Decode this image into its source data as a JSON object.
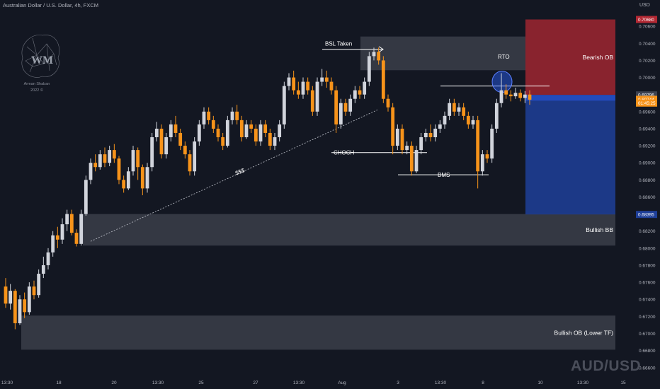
{
  "header": {
    "title": "Australian Dollar / U.S. Dollar, 4h, FXCM",
    "currency": "USD"
  },
  "watermark": {
    "symbol": "AUD/USD",
    "author": "Arman Shaban",
    "year": "2022 ©"
  },
  "chart_data": {
    "type": "candlestick",
    "ylim": [
      0.6654,
      0.7085
    ],
    "y_ticks": [
      "0.70600",
      "0.70400",
      "0.70200",
      "0.70000",
      "0.69800",
      "0.69600",
      "0.69400",
      "0.69200",
      "0.69000",
      "0.68800",
      "0.68600",
      "0.68400",
      "0.68200",
      "0.68000",
      "0.67800",
      "0.67600",
      "0.67400",
      "0.67200",
      "0.67000",
      "0.66800",
      "0.66600"
    ],
    "x_ticks": [
      "13:30",
      "18",
      "20",
      "13:30",
      "25",
      "27",
      "13:30",
      "Aug",
      "3",
      "13:30",
      "8",
      "10",
      "13:30",
      "15"
    ],
    "price_labels": [
      {
        "text": "0.70680",
        "value": 0.7068,
        "color": "#b22833"
      },
      {
        "text": "0.69796",
        "value": 0.69796,
        "color": "#3c4150"
      },
      {
        "text": "0.69744",
        "value": 0.69744,
        "color": "#f7931a"
      },
      {
        "text": "01:45:25",
        "value": 0.697,
        "color": "#f7931a"
      },
      {
        "text": "0.68395",
        "value": 0.68395,
        "color": "#1e3f99"
      }
    ],
    "zones": [
      {
        "label": "Bearish OB",
        "top": 0.7068,
        "bottom": 0.69796,
        "color": "#b22833"
      },
      {
        "label": "Bullish BB",
        "top": 0.684,
        "bottom": 0.6803,
        "color": "#50535e"
      },
      {
        "label": "Bullish OB (Lower TF)",
        "top": 0.6721,
        "bottom": 0.6681,
        "color": "#50535e"
      }
    ],
    "annotations": [
      "BSL Taken",
      "RTO",
      "CHOCH",
      "BMS",
      "$$$"
    ],
    "candles": [
      [
        0.6755,
        0.6735,
        0.6765,
        0.673
      ],
      [
        0.6735,
        0.675,
        0.6758,
        0.6728
      ],
      [
        0.675,
        0.6712,
        0.6752,
        0.6705
      ],
      [
        0.6712,
        0.674,
        0.6745,
        0.671
      ],
      [
        0.674,
        0.6725,
        0.6748,
        0.6718
      ],
      [
        0.6725,
        0.6755,
        0.676,
        0.6722
      ],
      [
        0.6755,
        0.6745,
        0.6762,
        0.674
      ],
      [
        0.6745,
        0.677,
        0.6775,
        0.6742
      ],
      [
        0.677,
        0.678,
        0.679,
        0.6765
      ],
      [
        0.678,
        0.6795,
        0.68,
        0.6775
      ],
      [
        0.6795,
        0.6815,
        0.682,
        0.679
      ],
      [
        0.6815,
        0.681,
        0.6825,
        0.68
      ],
      [
        0.681,
        0.6828,
        0.6835,
        0.6805
      ],
      [
        0.6828,
        0.684,
        0.6845,
        0.682
      ],
      [
        0.684,
        0.6818,
        0.6845,
        0.6815
      ],
      [
        0.6818,
        0.6805,
        0.6822,
        0.6802
      ],
      [
        0.6805,
        0.684,
        0.6845,
        0.6803
      ],
      [
        0.684,
        0.688,
        0.6885,
        0.6838
      ],
      [
        0.688,
        0.69,
        0.6905,
        0.6875
      ],
      [
        0.69,
        0.6895,
        0.691,
        0.689
      ],
      [
        0.6895,
        0.691,
        0.6915,
        0.6892
      ],
      [
        0.691,
        0.69,
        0.6918,
        0.6895
      ],
      [
        0.69,
        0.6915,
        0.692,
        0.6896
      ],
      [
        0.6915,
        0.6905,
        0.6922,
        0.69
      ],
      [
        0.6905,
        0.688,
        0.6908,
        0.6875
      ],
      [
        0.688,
        0.687,
        0.6885,
        0.6865
      ],
      [
        0.687,
        0.689,
        0.6895,
        0.6868
      ],
      [
        0.689,
        0.6915,
        0.692,
        0.6885
      ],
      [
        0.6915,
        0.6895,
        0.6918,
        0.688
      ],
      [
        0.6895,
        0.687,
        0.6898,
        0.6862
      ],
      [
        0.687,
        0.6895,
        0.69,
        0.6865
      ],
      [
        0.6895,
        0.693,
        0.6935,
        0.689
      ],
      [
        0.693,
        0.694,
        0.6948,
        0.6925
      ],
      [
        0.694,
        0.691,
        0.6945,
        0.6905
      ],
      [
        0.691,
        0.693,
        0.6935,
        0.6905
      ],
      [
        0.693,
        0.6945,
        0.695,
        0.6925
      ],
      [
        0.6945,
        0.6935,
        0.6955,
        0.693
      ],
      [
        0.6935,
        0.692,
        0.694,
        0.6915
      ],
      [
        0.692,
        0.691,
        0.6925,
        0.6905
      ],
      [
        0.691,
        0.689,
        0.6915,
        0.6885
      ],
      [
        0.689,
        0.6925,
        0.693,
        0.6885
      ],
      [
        0.6925,
        0.6945,
        0.695,
        0.692
      ],
      [
        0.6945,
        0.696,
        0.6965,
        0.694
      ],
      [
        0.696,
        0.695,
        0.6965,
        0.6945
      ],
      [
        0.695,
        0.694,
        0.6955,
        0.6935
      ],
      [
        0.694,
        0.693,
        0.6945,
        0.6925
      ],
      [
        0.693,
        0.692,
        0.6935,
        0.6915
      ],
      [
        0.692,
        0.695,
        0.6955,
        0.6918
      ],
      [
        0.695,
        0.696,
        0.6965,
        0.6945
      ],
      [
        0.696,
        0.695,
        0.6968,
        0.6945
      ],
      [
        0.695,
        0.693,
        0.6955,
        0.6925
      ],
      [
        0.693,
        0.6945,
        0.695,
        0.6928
      ],
      [
        0.6945,
        0.694,
        0.695,
        0.6935
      ],
      [
        0.694,
        0.6925,
        0.6945,
        0.692
      ],
      [
        0.6925,
        0.6945,
        0.695,
        0.692
      ],
      [
        0.6945,
        0.6935,
        0.695,
        0.693
      ],
      [
        0.6935,
        0.692,
        0.694,
        0.6915
      ],
      [
        0.692,
        0.693,
        0.6935,
        0.6915
      ],
      [
        0.693,
        0.6945,
        0.695,
        0.6925
      ],
      [
        0.6945,
        0.699,
        0.6995,
        0.694
      ],
      [
        0.699,
        0.7,
        0.7005,
        0.6985
      ],
      [
        0.7,
        0.6985,
        0.7008,
        0.698
      ],
      [
        0.6985,
        0.698,
        0.6995,
        0.6975
      ],
      [
        0.698,
        0.6995,
        0.7,
        0.6975
      ],
      [
        0.6995,
        0.6985,
        0.7,
        0.698
      ],
      [
        0.6985,
        0.696,
        0.699,
        0.6955
      ],
      [
        0.696,
        0.6995,
        0.7,
        0.6955
      ],
      [
        0.6995,
        0.7,
        0.701,
        0.699
      ],
      [
        0.7,
        0.6995,
        0.7008,
        0.6988
      ],
      [
        0.6995,
        0.6985,
        0.7,
        0.698
      ],
      [
        0.6985,
        0.6945,
        0.699,
        0.6935
      ],
      [
        0.6945,
        0.697,
        0.6975,
        0.694
      ],
      [
        0.697,
        0.696,
        0.6975,
        0.6955
      ],
      [
        0.696,
        0.6975,
        0.698,
        0.6955
      ],
      [
        0.6975,
        0.6985,
        0.699,
        0.697
      ],
      [
        0.6985,
        0.698,
        0.699,
        0.6975
      ],
      [
        0.698,
        0.6995,
        0.7,
        0.6975
      ],
      [
        0.6995,
        0.7025,
        0.703,
        0.699
      ],
      [
        0.7025,
        0.703,
        0.7035,
        0.702
      ],
      [
        0.703,
        0.702,
        0.7035,
        0.7015
      ],
      [
        0.702,
        0.6975,
        0.7025,
        0.697
      ],
      [
        0.6975,
        0.6965,
        0.698,
        0.696
      ],
      [
        0.6965,
        0.692,
        0.697,
        0.691
      ],
      [
        0.692,
        0.694,
        0.6945,
        0.6915
      ],
      [
        0.694,
        0.6915,
        0.6945,
        0.691
      ],
      [
        0.6915,
        0.692,
        0.6925,
        0.691
      ],
      [
        0.692,
        0.689,
        0.6925,
        0.6885
      ],
      [
        0.689,
        0.6915,
        0.692,
        0.6888
      ],
      [
        0.6915,
        0.693,
        0.6935,
        0.691
      ],
      [
        0.693,
        0.6935,
        0.694,
        0.6925
      ],
      [
        0.6935,
        0.693,
        0.6945,
        0.6925
      ],
      [
        0.693,
        0.694,
        0.6945,
        0.6925
      ],
      [
        0.694,
        0.6945,
        0.695,
        0.6935
      ],
      [
        0.6945,
        0.6955,
        0.696,
        0.694
      ],
      [
        0.6955,
        0.697,
        0.6975,
        0.695
      ],
      [
        0.697,
        0.696,
        0.6975,
        0.6955
      ],
      [
        0.696,
        0.6965,
        0.697,
        0.6955
      ],
      [
        0.6965,
        0.6955,
        0.697,
        0.695
      ],
      [
        0.6955,
        0.6945,
        0.696,
        0.694
      ],
      [
        0.6945,
        0.695,
        0.6955,
        0.694
      ],
      [
        0.695,
        0.689,
        0.6955,
        0.687
      ],
      [
        0.689,
        0.691,
        0.6915,
        0.6885
      ],
      [
        0.691,
        0.6905,
        0.6915,
        0.69
      ],
      [
        0.6905,
        0.694,
        0.6945,
        0.69
      ],
      [
        0.694,
        0.697,
        0.6975,
        0.6935
      ],
      [
        0.697,
        0.6985,
        0.7005,
        0.6965
      ],
      [
        0.6985,
        0.698,
        0.6992,
        0.6975
      ],
      [
        0.698,
        0.6978,
        0.6985,
        0.6972
      ],
      [
        0.6978,
        0.6982,
        0.6988,
        0.6975
      ],
      [
        0.6982,
        0.6976,
        0.6986,
        0.6972
      ],
      [
        0.6976,
        0.698,
        0.6984,
        0.697
      ],
      [
        0.698,
        0.6974,
        0.6985,
        0.6968
      ]
    ]
  }
}
